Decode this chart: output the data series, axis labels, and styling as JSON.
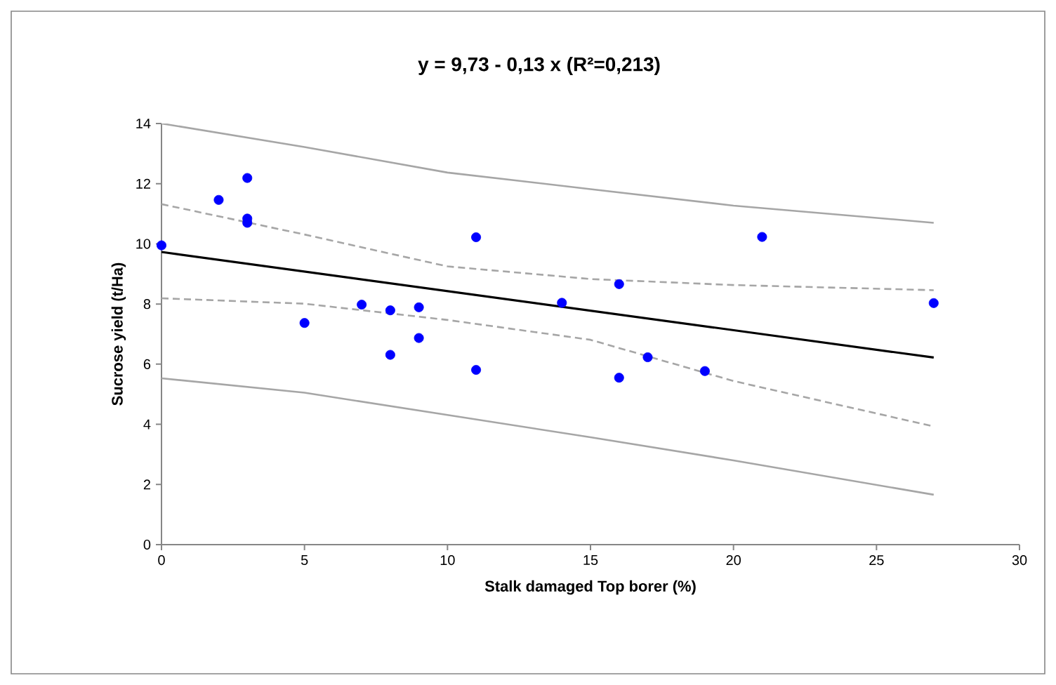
{
  "chart_data": {
    "type": "scatter",
    "title": "y = 9,73 - 0,13 x  (R²=0,213)",
    "xlabel": "Stalk damaged Top borer (%)",
    "ylabel": "Sucrose yield (t/Ha)",
    "xlim": [
      0,
      30
    ],
    "ylim": [
      0,
      14
    ],
    "xticks": [
      0,
      5,
      10,
      15,
      20,
      25,
      30
    ],
    "yticks": [
      0,
      2,
      4,
      6,
      8,
      10,
      12,
      14
    ],
    "grid": false,
    "series": [
      {
        "type": "line",
        "color": "#a6a6a6",
        "marker": "none",
        "line_style": "solid",
        "x": [
          0,
          5,
          10,
          15,
          20,
          27
        ],
        "values": [
          14.0,
          13.22,
          12.37,
          11.82,
          11.27,
          10.7
        ]
      },
      {
        "type": "line",
        "color": "#a6a6a6",
        "marker": "none",
        "line_style": "dashed",
        "x": [
          0,
          5,
          10,
          15,
          20,
          27
        ],
        "values": [
          11.32,
          10.31,
          9.25,
          8.83,
          8.63,
          8.46
        ]
      },
      {
        "type": "line",
        "color": "#000000",
        "marker": "none",
        "line_style": "solid",
        "x": [
          0,
          27
        ],
        "values": [
          9.73,
          6.22
        ]
      },
      {
        "type": "line",
        "color": "#a6a6a6",
        "marker": "none",
        "line_style": "dashed",
        "x": [
          0,
          5,
          10,
          15,
          20,
          27
        ],
        "values": [
          8.19,
          8.01,
          7.47,
          6.81,
          5.44,
          3.93
        ]
      },
      {
        "type": "line",
        "color": "#a6a6a6",
        "marker": "none",
        "line_style": "solid",
        "x": [
          0,
          5,
          10,
          15,
          20,
          27
        ],
        "values": [
          5.53,
          5.05,
          4.31,
          3.57,
          2.8,
          1.66
        ]
      },
      {
        "color": "#0000ff",
        "marker": "circle",
        "x": [
          0,
          2,
          3,
          3,
          3,
          5,
          7,
          8,
          8,
          9,
          9,
          11,
          11,
          14,
          16,
          16,
          17,
          19,
          21,
          27
        ],
        "values": [
          9.95,
          11.46,
          12.19,
          10.84,
          10.7,
          7.37,
          7.98,
          7.79,
          6.31,
          7.89,
          6.87,
          10.22,
          5.81,
          8.04,
          8.66,
          5.55,
          6.23,
          5.77,
          10.23,
          8.03
        ]
      }
    ]
  }
}
